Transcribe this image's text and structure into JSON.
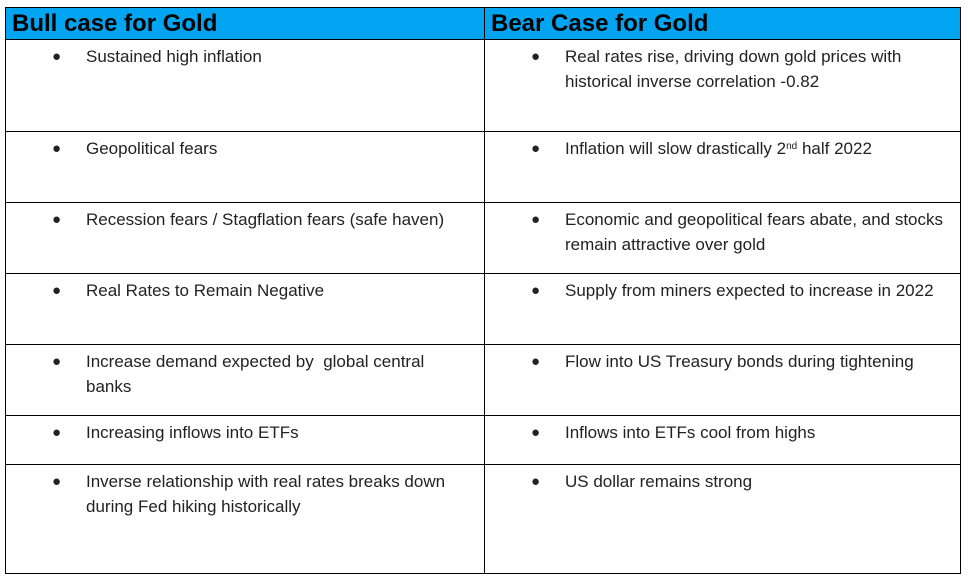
{
  "headers": {
    "bull": "Bull case for Gold",
    "bear": "Bear Case for Gold"
  },
  "bullet_glyph": "●",
  "rows": [
    {
      "bull": "Sustained high inflation",
      "bear": "Real rates rise, driving down gold prices with historical inverse correlation -0.82"
    },
    {
      "bull": "Geopolitical fears",
      "bear_pre": "Inflation will slow drastically 2",
      "bear_sup": "nd",
      "bear_post": " half 2022"
    },
    {
      "bull": "Recession fears / Stagflation fears (safe haven)",
      "bear": "Economic and geopolitical fears abate, and stocks remain attractive over gold"
    },
    {
      "bull": "Real Rates to Remain Negative",
      "bear": "Supply from miners expected to increase in 2022"
    },
    {
      "bull": "Increase demand expected by  global central banks",
      "bear": "Flow into US Treasury bonds during tightening"
    },
    {
      "bull": "Increasing inflows into ETFs",
      "bear": "Inflows into ETFs cool from highs"
    },
    {
      "bull": "Inverse relationship with real rates breaks down during Fed hiking historically",
      "bear": "US dollar remains strong"
    }
  ],
  "colors": {
    "header_background": "#00a4f0",
    "border": "#000000",
    "text": "#222222"
  }
}
